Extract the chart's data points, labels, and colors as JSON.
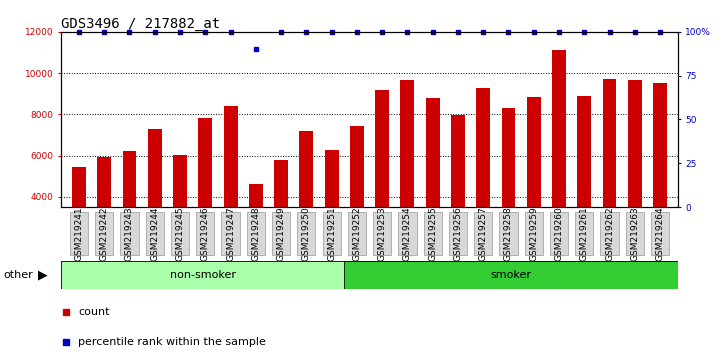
{
  "title": "GDS3496 / 217882_at",
  "categories": [
    "GSM219241",
    "GSM219242",
    "GSM219243",
    "GSM219244",
    "GSM219245",
    "GSM219246",
    "GSM219247",
    "GSM219248",
    "GSM219249",
    "GSM219250",
    "GSM219251",
    "GSM219252",
    "GSM219253",
    "GSM219254",
    "GSM219255",
    "GSM219256",
    "GSM219257",
    "GSM219258",
    "GSM219259",
    "GSM219260",
    "GSM219261",
    "GSM219262",
    "GSM219263",
    "GSM219264"
  ],
  "values": [
    5450,
    5950,
    6200,
    7300,
    6050,
    7800,
    8400,
    4600,
    5800,
    7200,
    6250,
    7450,
    9200,
    9650,
    8800,
    7950,
    9300,
    8300,
    8850,
    11100,
    8900,
    9700,
    9650,
    9500
  ],
  "percentile_values": [
    100,
    100,
    100,
    100,
    100,
    100,
    100,
    90,
    100,
    100,
    100,
    100,
    100,
    100,
    100,
    100,
    100,
    100,
    100,
    100,
    100,
    100,
    100,
    100
  ],
  "bar_color": "#cc0000",
  "percentile_color": "#0000cc",
  "ylim": [
    3500,
    12000
  ],
  "ylim_right": [
    0,
    100
  ],
  "yticks": [
    4000,
    6000,
    8000,
    10000,
    12000
  ],
  "yticks_right": [
    0,
    25,
    50,
    75,
    100
  ],
  "ytick_labels_left": [
    "4000",
    "6000",
    "8000",
    "10000",
    "12000"
  ],
  "ytick_labels_right": [
    "0",
    "25",
    "50",
    "75",
    "100%"
  ],
  "groups": [
    {
      "label": "non-smoker",
      "start": 0,
      "end": 11,
      "color": "#aaffaa"
    },
    {
      "label": "smoker",
      "start": 11,
      "end": 24,
      "color": "#33cc33"
    }
  ],
  "other_label": "other",
  "legend_count_label": "count",
  "legend_percentile_label": "percentile rank within the sample",
  "tick_label_color_left": "#cc0000",
  "tick_label_color_right": "#0000cc",
  "title_fontsize": 10,
  "axis_fontsize": 6.5,
  "label_fontsize": 8,
  "bar_width": 0.55
}
